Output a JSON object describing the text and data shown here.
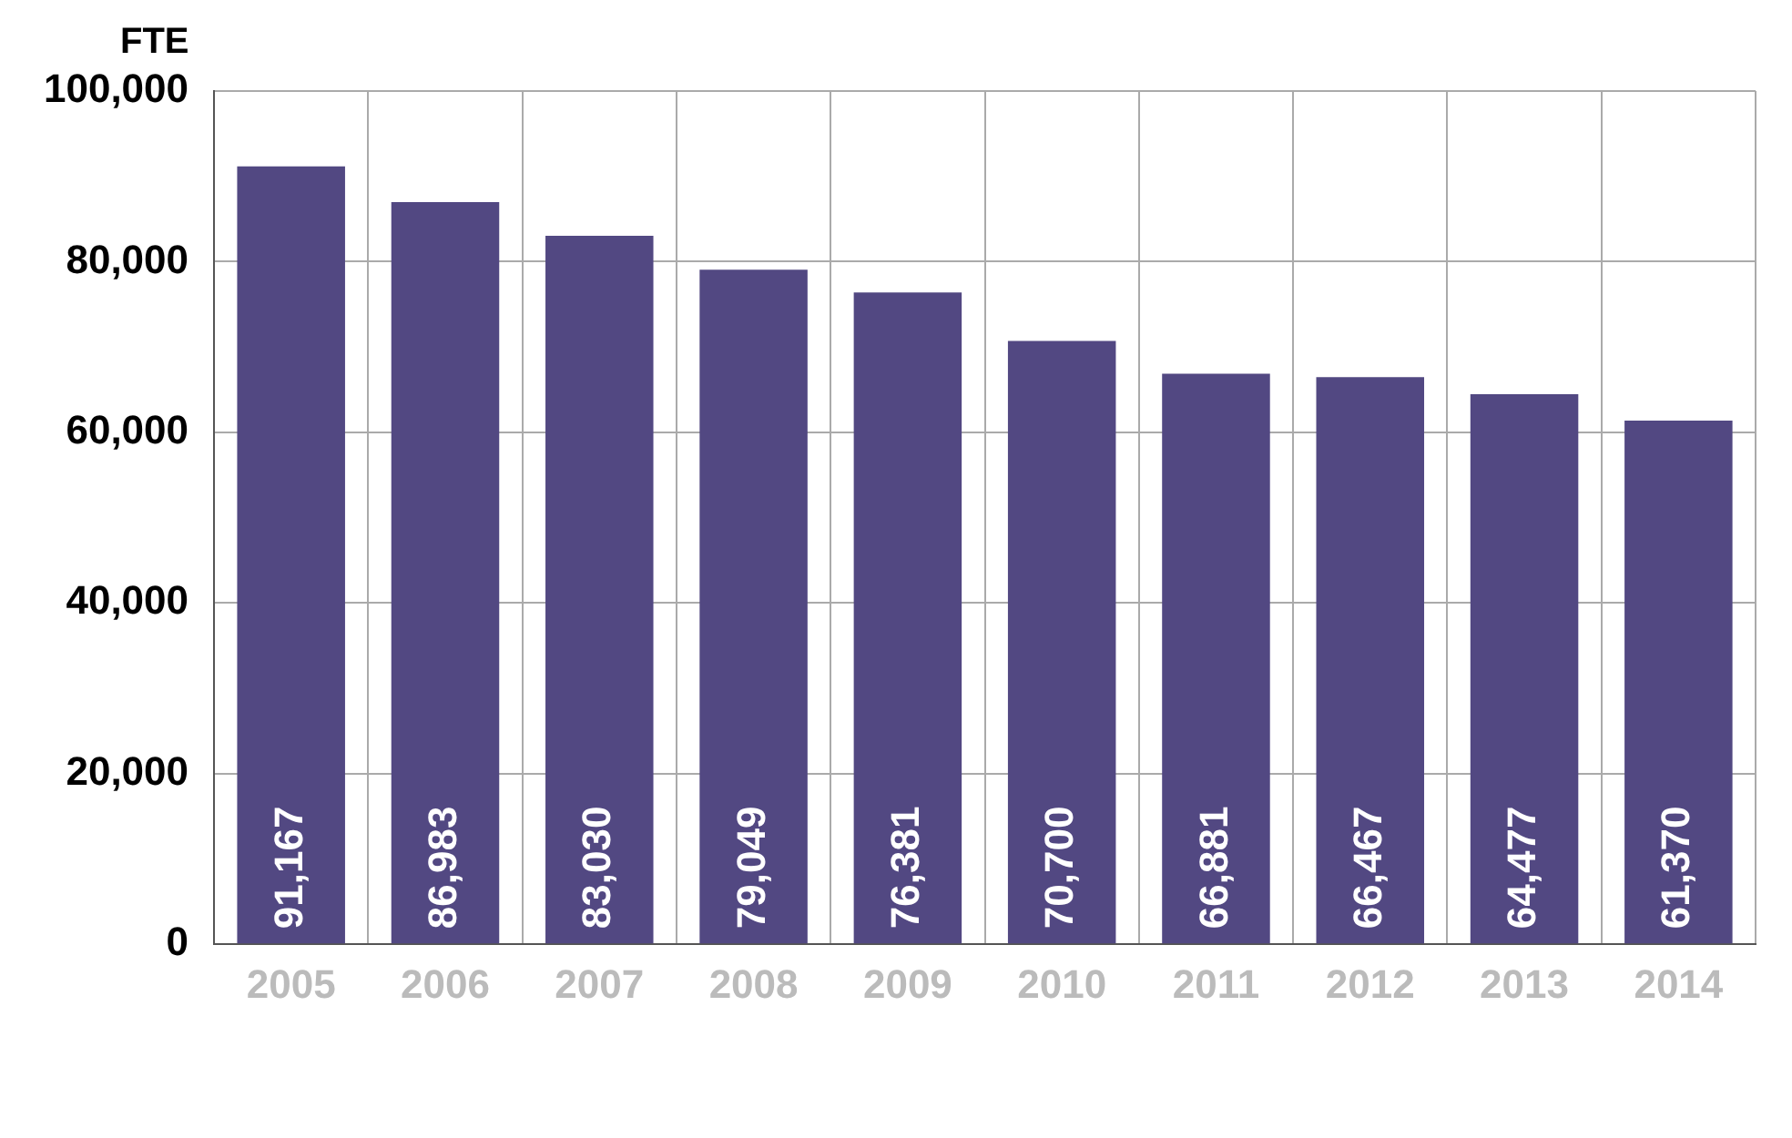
{
  "chart_data": {
    "type": "bar",
    "ylabel": "FTE",
    "categories": [
      "2005",
      "2006",
      "2007",
      "2008",
      "2009",
      "2010",
      "2011",
      "2012",
      "2013",
      "2014"
    ],
    "values": [
      91167,
      86983,
      83030,
      79049,
      76381,
      70700,
      66881,
      66467,
      64477,
      61370
    ],
    "color": "#524882",
    "ylim": [
      0,
      100000
    ],
    "yticks": [
      {
        "value": 0,
        "label": "0"
      },
      {
        "value": 20000,
        "label": "20,000"
      },
      {
        "value": 40000,
        "label": "40,000"
      },
      {
        "value": 60000,
        "label": "60,000"
      },
      {
        "value": 80000,
        "label": "80,000"
      },
      {
        "value": 100000,
        "label": "100,000"
      }
    ],
    "value_labels": [
      "91,167",
      "86,983",
      "83,030",
      "79,049",
      "76,381",
      "70,700",
      "66,881",
      "66,467",
      "64,477",
      "61,370"
    ],
    "grid": true
  }
}
